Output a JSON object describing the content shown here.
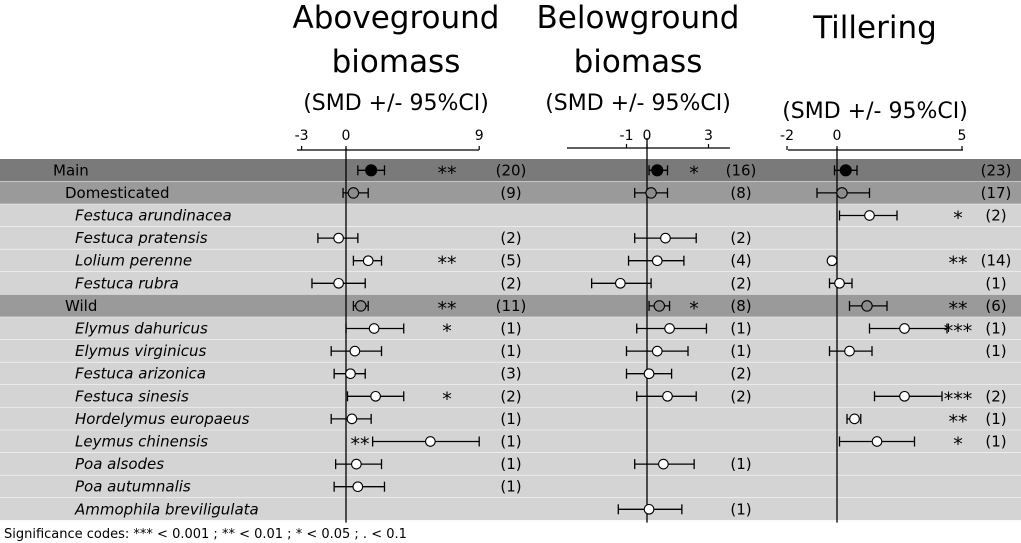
{
  "chart_data": {
    "type": "forest",
    "panels": [
      {
        "title_lines": [
          "Aboveground",
          "biomass"
        ],
        "subtitle": "(SMD +/- 95%CI)",
        "ticks": [
          -3,
          0,
          9
        ]
      },
      {
        "title_lines": [
          "Belowground",
          "biomass"
        ],
        "subtitle": "(SMD +/- 95%CI)",
        "ticks": [
          -1,
          0,
          3
        ]
      },
      {
        "title_lines": [
          "Tillering"
        ],
        "subtitle": "(SMD +/- 95%CI)",
        "ticks": [
          -2,
          0,
          5
        ]
      }
    ],
    "rows": [
      {
        "label": "Main",
        "level": "main",
        "cells": [
          {
            "est": 1.7,
            "lo": 0.8,
            "hi": 2.6,
            "sig": "**",
            "n": "(20)"
          },
          {
            "est": 0.5,
            "lo": 0.1,
            "hi": 1.0,
            "sig": "*",
            "n": "(16)"
          },
          {
            "est": 0.35,
            "lo": -0.1,
            "hi": 0.8,
            "sig": "",
            "n": "(23)"
          }
        ]
      },
      {
        "label": "Domesticated",
        "level": "group",
        "cells": [
          {
            "est": 0.5,
            "lo": -0.2,
            "hi": 1.5,
            "sig": "",
            "n": "(9)"
          },
          {
            "est": 0.2,
            "lo": -0.6,
            "hi": 1.0,
            "sig": "",
            "n": "(8)"
          },
          {
            "est": 0.2,
            "lo": -0.8,
            "hi": 1.3,
            "sig": "",
            "n": "(17)"
          }
        ]
      },
      {
        "label": "Festuca arundinacea",
        "level": "species",
        "cells": [
          null,
          null,
          {
            "est": 1.3,
            "lo": 0.1,
            "hi": 2.4,
            "sig": "*",
            "n": "(2)"
          }
        ]
      },
      {
        "label": "Festuca pratensis",
        "level": "species",
        "cells": [
          {
            "est": -0.5,
            "lo": -1.9,
            "hi": 0.8,
            "sig": "",
            "n": "(2)"
          },
          {
            "est": 0.9,
            "lo": -0.6,
            "hi": 2.4,
            "sig": "",
            "n": "(2)"
          },
          null
        ]
      },
      {
        "label": "Lolium perenne",
        "level": "species",
        "cells": [
          {
            "est": 1.5,
            "lo": 0.5,
            "hi": 2.4,
            "sig": "**",
            "n": "(5)"
          },
          {
            "est": 0.5,
            "lo": -0.9,
            "hi": 1.8,
            "sig": "",
            "n": "(4)"
          },
          {
            "est": -0.2,
            "lo": -0.3,
            "hi": -0.1,
            "sig": "**",
            "n": "(14)"
          }
        ]
      },
      {
        "label": "Festuca rubra",
        "level": "species",
        "cells": [
          {
            "est": -0.5,
            "lo": -2.3,
            "hi": 1.3,
            "sig": "",
            "n": "(2)"
          },
          {
            "est": -1.3,
            "lo": -2.7,
            "hi": 0.2,
            "sig": "",
            "n": "(2)"
          },
          {
            "est": 0.1,
            "lo": -0.3,
            "hi": 0.6,
            "sig": "",
            "n": "(1)"
          }
        ]
      },
      {
        "label": "Wild",
        "level": "group",
        "cells": [
          {
            "est": 1.0,
            "lo": 0.5,
            "hi": 1.5,
            "sig": "**",
            "n": "(11)"
          },
          {
            "est": 0.6,
            "lo": 0.1,
            "hi": 1.1,
            "sig": "*",
            "n": "(8)"
          },
          {
            "est": 1.2,
            "lo": 0.5,
            "hi": 2.0,
            "sig": "**",
            "n": "(6)"
          }
        ]
      },
      {
        "label": "Elymus dahuricus",
        "level": "species",
        "cells": [
          {
            "est": 1.9,
            "lo": 0.0,
            "hi": 3.9,
            "sig": "*",
            "n": "(1)"
          },
          {
            "est": 1.1,
            "lo": -0.5,
            "hi": 2.9,
            "sig": "",
            "n": "(1)"
          },
          {
            "est": 2.7,
            "lo": 1.3,
            "hi": 4.4,
            "sig": "***",
            "n": "(1)"
          }
        ]
      },
      {
        "label": "Elymus virginicus",
        "level": "species",
        "cells": [
          {
            "est": 0.6,
            "lo": -1.0,
            "hi": 2.4,
            "sig": "",
            "n": "(1)"
          },
          {
            "est": 0.5,
            "lo": -1.0,
            "hi": 2.0,
            "sig": "",
            "n": "(1)"
          },
          {
            "est": 0.5,
            "lo": -0.3,
            "hi": 1.4,
            "sig": "",
            "n": "(1)"
          }
        ]
      },
      {
        "label": "Festuca arizonica",
        "level": "species",
        "cells": [
          {
            "est": 0.3,
            "lo": -0.8,
            "hi": 1.3,
            "sig": "",
            "n": "(3)"
          },
          {
            "est": 0.1,
            "lo": -1.0,
            "hi": 1.2,
            "sig": "",
            "n": "(2)"
          },
          null
        ]
      },
      {
        "label": "Festuca sinesis",
        "level": "species",
        "cells": [
          {
            "est": 2.0,
            "lo": 0.1,
            "hi": 3.9,
            "sig": "*",
            "n": "(2)"
          },
          {
            "est": 1.0,
            "lo": -0.5,
            "hi": 2.4,
            "sig": "",
            "n": "(2)"
          },
          {
            "est": 2.7,
            "lo": 1.5,
            "hi": 4.2,
            "sig": "***",
            "n": "(2)"
          }
        ]
      },
      {
        "label": "Hordelymus europaeus",
        "level": "species",
        "cells": [
          {
            "est": 0.4,
            "lo": -1.0,
            "hi": 1.7,
            "sig": "",
            "n": "(1)"
          },
          null,
          {
            "est": 0.7,
            "lo": 0.4,
            "hi": 0.95,
            "sig": "**",
            "n": "(1)"
          }
        ]
      },
      {
        "label": "Leymus chinensis",
        "level": "species",
        "cells": [
          {
            "est": 5.7,
            "lo": 1.8,
            "hi": 9.0,
            "sig": "**",
            "n": "(1)"
          },
          null,
          {
            "est": 1.6,
            "lo": 0.1,
            "hi": 3.1,
            "sig": "*",
            "n": "(1)"
          }
        ]
      },
      {
        "label": "Poa alsodes",
        "level": "species",
        "cells": [
          {
            "est": 0.7,
            "lo": -0.7,
            "hi": 2.4,
            "sig": "",
            "n": "(1)"
          },
          {
            "est": 0.8,
            "lo": -0.6,
            "hi": 2.3,
            "sig": "",
            "n": "(1)"
          },
          null
        ]
      },
      {
        "label": "Poa autumnalis",
        "level": "species",
        "cells": [
          {
            "est": 0.8,
            "lo": -0.8,
            "hi": 2.6,
            "sig": "",
            "n": "(1)"
          },
          null,
          null
        ]
      },
      {
        "label": "Ammophila breviligulata",
        "level": "species",
        "cells": [
          null,
          {
            "est": 0.1,
            "lo": -1.4,
            "hi": 1.7,
            "sig": "",
            "n": "(1)"
          },
          null
        ]
      }
    ],
    "footnote": "Significance codes:  *** < 0.001 ; ** < 0.01 ; * < 0.05 ; . < 0.1",
    "colors": {
      "main_band": "#7a7a7a",
      "group_band": "#9a9a9a",
      "species_band": "#d4d4d4",
      "main_marker": "#000000",
      "group_marker": "#8c8c8c",
      "species_marker": "#ffffff"
    }
  }
}
